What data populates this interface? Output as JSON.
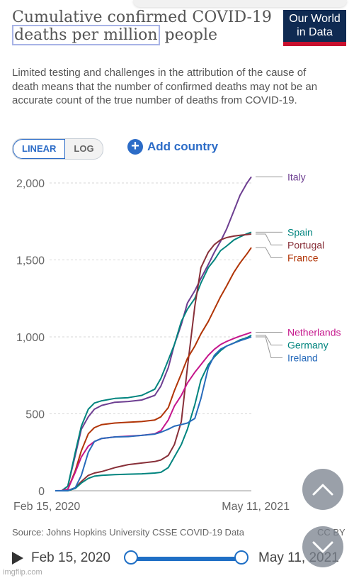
{
  "header": {
    "title_part1": "Cumulative confirmed COVID-19 ",
    "title_highlight": "deaths per million",
    "title_part2": " people",
    "subtitle": "Limited testing and challenges in the attribution of the cause of death means that the number of confirmed deaths may not be an accurate count of the true number of deaths from COVID-19.",
    "logo_line1": "Our World",
    "logo_line2": "in Data"
  },
  "controls": {
    "scale_options": [
      "LINEAR",
      "LOG"
    ],
    "selected_scale": "LINEAR",
    "add_country_label": "Add country"
  },
  "chart_data": {
    "type": "line",
    "title": "Cumulative confirmed COVID-19 deaths per million people",
    "x_start": "Feb 15, 2020",
    "x_end": "May 11, 2021",
    "x_tick_labels": [
      "Feb 15, 2020",
      "May 11, 2021"
    ],
    "ylim": [
      0,
      2000
    ],
    "y_ticks": [
      0,
      500,
      1000,
      1500,
      2000
    ],
    "y_tick_labels": [
      "0",
      "500",
      "1,000",
      "1,500",
      "2,000"
    ],
    "grid": "horizontal dashed",
    "x": [
      "2020-02-15",
      "2020-03-01",
      "2020-03-15",
      "2020-04-01",
      "2020-04-15",
      "2020-05-01",
      "2020-05-15",
      "2020-06-01",
      "2020-07-01",
      "2020-08-01",
      "2020-09-01",
      "2020-10-01",
      "2020-10-15",
      "2020-11-01",
      "2020-11-15",
      "2020-12-01",
      "2020-12-15",
      "2021-01-01",
      "2021-01-15",
      "2021-02-01",
      "2021-02-15",
      "2021-03-01",
      "2021-03-15",
      "2021-04-01",
      "2021-04-15",
      "2021-05-01",
      "2021-05-11"
    ],
    "series": [
      {
        "name": "Italy",
        "color": "#6d3e91",
        "values": [
          0,
          1,
          30,
          230,
          400,
          480,
          530,
          555,
          575,
          580,
          590,
          620,
          680,
          800,
          950,
          1080,
          1220,
          1300,
          1380,
          1470,
          1550,
          1620,
          1700,
          1820,
          1920,
          2000,
          2040
        ]
      },
      {
        "name": "Spain",
        "color": "#00847e",
        "values": [
          0,
          0,
          30,
          250,
          420,
          530,
          570,
          585,
          600,
          605,
          620,
          660,
          730,
          850,
          950,
          1100,
          1180,
          1250,
          1350,
          1450,
          1500,
          1560,
          1590,
          1630,
          1650,
          1670,
          1680
        ]
      },
      {
        "name": "Portugal",
        "color": "#883039",
        "values": [
          0,
          0,
          2,
          20,
          60,
          100,
          115,
          125,
          150,
          170,
          180,
          190,
          200,
          230,
          300,
          450,
          800,
          1200,
          1450,
          1550,
          1600,
          1630,
          1645,
          1655,
          1660,
          1665,
          1668
        ]
      },
      {
        "name": "France",
        "color": "#b13507",
        "values": [
          0,
          0,
          10,
          130,
          260,
          370,
          410,
          430,
          440,
          445,
          450,
          460,
          480,
          540,
          650,
          760,
          860,
          940,
          1020,
          1100,
          1180,
          1260,
          1330,
          1420,
          1480,
          1540,
          1580
        ]
      },
      {
        "name": "Netherlands",
        "color": "#c5168c",
        "values": [
          0,
          0,
          10,
          120,
          220,
          290,
          320,
          340,
          350,
          355,
          360,
          370,
          390,
          460,
          550,
          620,
          700,
          770,
          820,
          880,
          920,
          950,
          970,
          990,
          1005,
          1020,
          1030
        ]
      },
      {
        "name": "Germany",
        "color": "#00847e",
        "values": [
          0,
          0,
          0,
          15,
          50,
          80,
          95,
          100,
          105,
          108,
          110,
          115,
          120,
          150,
          220,
          300,
          400,
          560,
          720,
          820,
          870,
          910,
          940,
          960,
          980,
          995,
          1010
        ]
      },
      {
        "name": "Ireland",
        "color": "#286bbb",
        "values": [
          0,
          0,
          1,
          20,
          100,
          250,
          320,
          340,
          350,
          352,
          360,
          368,
          380,
          400,
          420,
          430,
          440,
          470,
          600,
          800,
          880,
          920,
          940,
          960,
          975,
          990,
          1000
        ]
      }
    ]
  },
  "footer": {
    "source": "Source: Johns Hopkins University CSSE COVID-19 Data",
    "license": "CC BY"
  },
  "timeline": {
    "start_label": "Feb 15, 2020",
    "end_label": "May 11, 2021"
  },
  "watermark": "imgflip.com"
}
